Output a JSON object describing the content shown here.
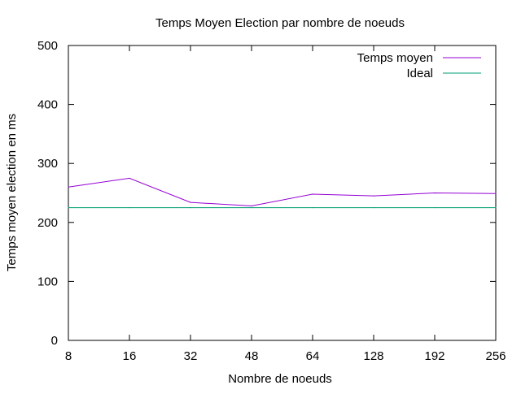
{
  "chart_data": {
    "type": "line",
    "title": "Temps Moyen Election par nombre de noeuds",
    "xlabel": "Nombre de noeuds",
    "ylabel": "Temps moyen election en ms",
    "categories": [
      "8",
      "16",
      "32",
      "48",
      "64",
      "128",
      "192",
      "256"
    ],
    "ylim": [
      0,
      500
    ],
    "yticks": [
      0,
      100,
      200,
      300,
      400,
      500
    ],
    "grid": false,
    "legend_position": "top-right",
    "series": [
      {
        "name": "Temps moyen",
        "values": [
          260,
          275,
          234,
          228,
          248,
          245,
          250,
          249
        ],
        "color": "#9400d3"
      },
      {
        "name": "Ideal",
        "values": [
          225,
          225,
          225,
          225,
          225,
          225,
          225,
          225
        ],
        "color": "#009e73"
      }
    ]
  }
}
